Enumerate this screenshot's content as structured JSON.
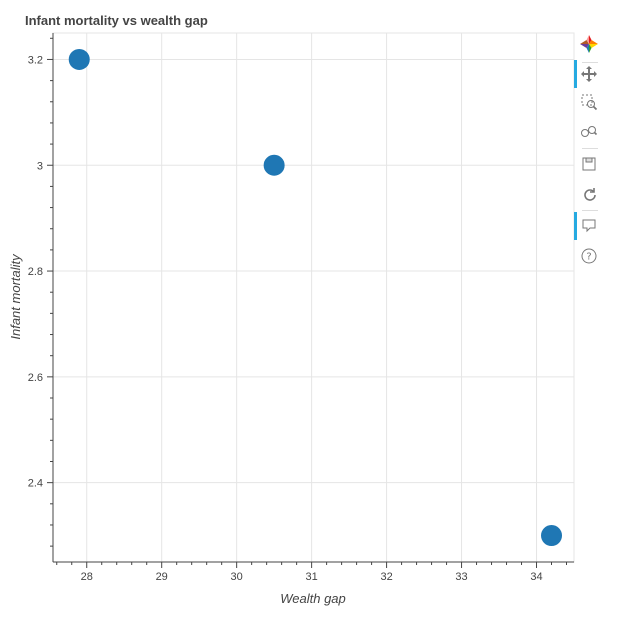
{
  "chart_data": {
    "type": "scatter",
    "title": "Infant mortality vs wealth gap",
    "xlabel": "Wealth gap",
    "ylabel": "Infant mortality",
    "x": [
      27.9,
      30.5,
      34.2
    ],
    "y": [
      3.2,
      3.0,
      2.3
    ],
    "xlim": [
      27.55,
      34.5
    ],
    "ylim": [
      2.25,
      3.25
    ],
    "x_ticks": [
      28,
      29,
      30,
      31,
      32,
      33,
      34
    ],
    "y_ticks": [
      2.4,
      2.6,
      2.8,
      3.0,
      3.2
    ],
    "x_tick_labels": [
      "28",
      "29",
      "30",
      "31",
      "32",
      "33",
      "34"
    ],
    "y_tick_labels": [
      "2.4",
      "2.6",
      "2.8",
      "3",
      "3.2"
    ],
    "grid": true,
    "colors": {
      "marker": "#1f77b4",
      "grid": "#e5e5e5",
      "axis": "#444444",
      "text": "#444444"
    }
  },
  "toolbar": {
    "tools": [
      {
        "name": "bokeh-logo",
        "icon": "bokeh-logo-icon",
        "active": false
      },
      {
        "name": "pan",
        "icon": "pan-icon",
        "active": true
      },
      {
        "name": "box-zoom",
        "icon": "box-zoom-icon",
        "active": false
      },
      {
        "name": "wheel-zoom",
        "icon": "wheel-zoom-icon",
        "active": false
      },
      {
        "name": "save",
        "icon": "save-icon",
        "active": false
      },
      {
        "name": "reset",
        "icon": "reset-icon",
        "active": false
      },
      {
        "name": "hover",
        "icon": "hover-icon",
        "active": true
      },
      {
        "name": "help",
        "icon": "help-icon",
        "active": false
      }
    ]
  }
}
